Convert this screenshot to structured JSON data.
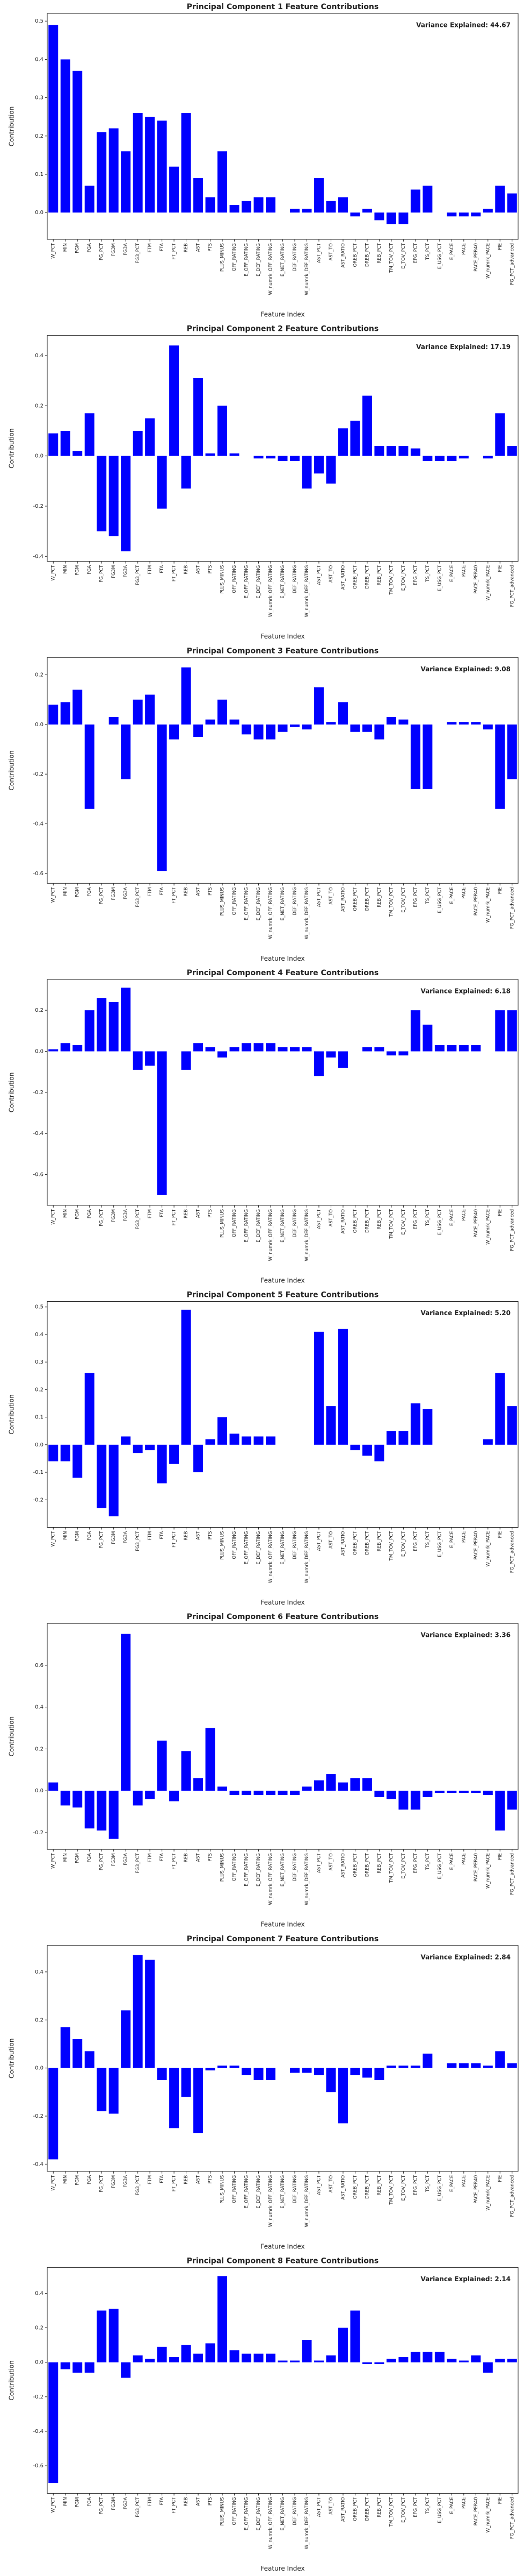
{
  "chart_data": [
    {
      "type": "bar",
      "title": "Principal Component 1 Feature Contributions",
      "annotation": "Variance Explained: 44.67",
      "xlabel": "Feature Index",
      "ylabel": "Contribution",
      "color": "#0000ff",
      "categories": [
        "W_PCT",
        "MIN",
        "FGM",
        "FGA",
        "FG_PCT",
        "FG3M",
        "FG3A",
        "FG3_PCT",
        "FTM",
        "FTA",
        "FT_PCT",
        "REB",
        "AST",
        "PTS",
        "PLUS_MINUS",
        "OFF_RATING",
        "E_OFF_RATING",
        "E_DEF_RATING",
        "W_numrk_OFF_RATING",
        "E_NET_RATING",
        "DEF_RATING",
        "W_numrk_DEF_RATING",
        "AST_PCT",
        "AST_TO",
        "AST_RATIO",
        "OREB_PCT",
        "DREB_PCT",
        "REB_PCT",
        "TM_TOV_PCT",
        "E_TOV_PCT",
        "EFG_PCT",
        "TS_PCT",
        "E_USG_PCT",
        "E_PACE",
        "PACE",
        "PACE_PER40",
        "W_numrk_PACE",
        "PIE",
        "FG_PCT_advanced"
      ],
      "values": [
        0.49,
        0.4,
        0.37,
        0.07,
        0.21,
        0.22,
        0.16,
        0.26,
        0.25,
        0.24,
        0.12,
        0.26,
        0.09,
        0.04,
        0.16,
        0.02,
        0.03,
        0.04,
        0.04,
        0.0,
        0.01,
        0.01,
        0.09,
        0.03,
        0.04,
        -0.01,
        0.01,
        -0.02,
        -0.03,
        -0.03,
        0.06,
        0.07,
        0.0,
        -0.01,
        -0.01,
        -0.01,
        0.01,
        0.07,
        0.05
      ],
      "ylim": [
        -0.07,
        0.52
      ],
      "yticks": [
        {
          "value": 0,
          "label": "0.0"
        },
        0.1,
        0.2,
        0.3,
        0.4,
        0.5
      ]
    },
    {
      "type": "bar",
      "title": "Principal Component 2 Feature Contributions",
      "annotation": "Variance Explained: 17.19",
      "xlabel": "Feature Index",
      "ylabel": "Contribution",
      "color": "#0000ff",
      "categories": [
        "W_PCT",
        "MIN",
        "FGM",
        "FGA",
        "FG_PCT",
        "FG3M",
        "FG3A",
        "FG3_PCT",
        "FTM",
        "FTA",
        "FT_PCT",
        "REB",
        "AST",
        "PTS",
        "PLUS_MINUS",
        "OFF_RATING",
        "E_OFF_RATING",
        "E_DEF_RATING",
        "W_numrk_OFF_RATING",
        "E_NET_RATING",
        "DEF_RATING",
        "W_numrk_DEF_RATING",
        "AST_PCT",
        "AST_TO",
        "AST_RATIO",
        "OREB_PCT",
        "DREB_PCT",
        "REB_PCT",
        "TM_TOV_PCT",
        "E_TOV_PCT",
        "EFG_PCT",
        "TS_PCT",
        "E_USG_PCT",
        "E_PACE",
        "PACE",
        "PACE_PER40",
        "W_numrk_PACE",
        "PIE",
        "FG_PCT_advanced"
      ],
      "values": [
        0.09,
        0.1,
        0.02,
        0.17,
        -0.3,
        -0.32,
        -0.38,
        0.1,
        0.15,
        -0.21,
        0.44,
        -0.13,
        0.31,
        0.01,
        0.2,
        0.01,
        0.0,
        -0.01,
        -0.01,
        -0.02,
        -0.02,
        -0.13,
        -0.07,
        -0.11,
        0.11,
        0.14,
        0.24,
        0.04,
        0.04,
        0.04,
        0.03,
        -0.02,
        -0.02,
        -0.02,
        -0.01,
        0.0,
        -0.01,
        0.17,
        0.04
      ],
      "ylim": [
        -0.42,
        0.48
      ],
      "yticks": [
        -0.4,
        -0.2,
        {
          "value": 0,
          "label": "0.0"
        },
        0.2,
        0.4
      ]
    },
    {
      "type": "bar",
      "title": "Principal Component 3 Feature Contributions",
      "annotation": "Variance Explained: 9.08",
      "xlabel": "Feature Index",
      "ylabel": "Contribution",
      "color": "#0000ff",
      "categories": [
        "W_PCT",
        "MIN",
        "FGM",
        "FGA",
        "FG_PCT",
        "FG3M",
        "FG3A",
        "FG3_PCT",
        "FTM",
        "FTA",
        "FT_PCT",
        "REB",
        "AST",
        "PTS",
        "PLUS_MINUS",
        "OFF_RATING",
        "E_OFF_RATING",
        "E_DEF_RATING",
        "W_numrk_OFF_RATING",
        "E_NET_RATING",
        "DEF_RATING",
        "W_numrk_DEF_RATING",
        "AST_PCT",
        "AST_TO",
        "AST_RATIO",
        "OREB_PCT",
        "DREB_PCT",
        "REB_PCT",
        "TM_TOV_PCT",
        "E_TOV_PCT",
        "EFG_PCT",
        "TS_PCT",
        "E_USG_PCT",
        "E_PACE",
        "PACE",
        "PACE_PER40",
        "W_numrk_PACE",
        "PIE",
        "FG_PCT_advanced"
      ],
      "values": [
        0.08,
        0.09,
        0.14,
        -0.34,
        0.0,
        0.03,
        -0.22,
        0.1,
        0.12,
        -0.59,
        -0.06,
        0.23,
        -0.05,
        0.02,
        0.1,
        0.02,
        -0.04,
        -0.06,
        -0.06,
        -0.03,
        -0.01,
        -0.02,
        0.15,
        0.01,
        0.09,
        -0.03,
        -0.03,
        -0.06,
        0.03,
        0.02,
        -0.26,
        -0.26,
        0.0,
        0.01,
        0.01,
        0.01,
        -0.02,
        -0.34,
        -0.22
      ],
      "ylim": [
        -0.64,
        0.27
      ],
      "yticks": [
        -0.6,
        -0.4,
        -0.2,
        {
          "value": 0,
          "label": "0.0"
        },
        0.2
      ]
    },
    {
      "type": "bar",
      "title": "Principal Component 4 Feature Contributions",
      "annotation": "Variance Explained: 6.18",
      "xlabel": "Feature Index",
      "ylabel": "Contribution",
      "color": "#0000ff",
      "categories": [
        "W_PCT",
        "MIN",
        "FGM",
        "FGA",
        "FG_PCT",
        "FG3M",
        "FG3A",
        "FG3_PCT",
        "FTM",
        "FTA",
        "FT_PCT",
        "REB",
        "AST",
        "PTS",
        "PLUS_MINUS",
        "OFF_RATING",
        "E_OFF_RATING",
        "E_DEF_RATING",
        "W_numrk_OFF_RATING",
        "E_NET_RATING",
        "DEF_RATING",
        "W_numrk_DEF_RATING",
        "AST_PCT",
        "AST_TO",
        "AST_RATIO",
        "OREB_PCT",
        "DREB_PCT",
        "REB_PCT",
        "TM_TOV_PCT",
        "E_TOV_PCT",
        "EFG_PCT",
        "TS_PCT",
        "E_USG_PCT",
        "E_PACE",
        "PACE",
        "PACE_PER40",
        "W_numrk_PACE",
        "PIE",
        "FG_PCT_advanced"
      ],
      "values": [
        0.01,
        0.04,
        0.03,
        0.2,
        0.26,
        0.24,
        0.31,
        -0.09,
        -0.07,
        -0.7,
        0.0,
        -0.09,
        0.04,
        0.02,
        -0.03,
        0.02,
        0.04,
        0.04,
        0.04,
        0.02,
        0.02,
        0.02,
        -0.12,
        -0.03,
        -0.08,
        0.0,
        0.02,
        0.02,
        -0.02,
        -0.02,
        0.2,
        0.13,
        0.03,
        0.03,
        0.03,
        0.03,
        0.0,
        0.2,
        0.2
      ],
      "ylim": [
        -0.75,
        0.35
      ],
      "yticks": [
        -0.6,
        -0.4,
        -0.2,
        {
          "value": 0,
          "label": "0.0"
        },
        0.2
      ]
    },
    {
      "type": "bar",
      "title": "Principal Component 5 Feature Contributions",
      "annotation": "Variance Explained: 5.20",
      "xlabel": "Feature Index",
      "ylabel": "Contribution",
      "color": "#0000ff",
      "categories": [
        "W_PCT",
        "MIN",
        "FGM",
        "FGA",
        "FG_PCT",
        "FG3M",
        "FG3A",
        "FG3_PCT",
        "FTM",
        "FTA",
        "FT_PCT",
        "REB",
        "AST",
        "PTS",
        "PLUS_MINUS",
        "OFF_RATING",
        "E_OFF_RATING",
        "E_DEF_RATING",
        "W_numrk_OFF_RATING",
        "E_NET_RATING",
        "DEF_RATING",
        "W_numrk_DEF_RATING",
        "AST_PCT",
        "AST_TO",
        "AST_RATIO",
        "OREB_PCT",
        "DREB_PCT",
        "REB_PCT",
        "TM_TOV_PCT",
        "E_TOV_PCT",
        "EFG_PCT",
        "TS_PCT",
        "E_USG_PCT",
        "E_PACE",
        "PACE",
        "PACE_PER40",
        "W_numrk_PACE",
        "PIE",
        "FG_PCT_advanced"
      ],
      "values": [
        -0.06,
        -0.06,
        -0.12,
        0.26,
        -0.23,
        -0.26,
        0.03,
        -0.03,
        -0.02,
        -0.14,
        -0.07,
        0.49,
        -0.1,
        0.02,
        0.1,
        0.04,
        0.03,
        0.03,
        0.03,
        0.0,
        0.0,
        0.0,
        0.41,
        0.14,
        0.42,
        -0.02,
        -0.04,
        -0.06,
        0.05,
        0.05,
        0.15,
        0.13,
        0.0,
        0.0,
        0.0,
        0.0,
        0.02,
        0.26,
        0.14
      ],
      "ylim": [
        -0.3,
        0.52
      ],
      "yticks": [
        -0.2,
        -0.1,
        {
          "value": 0,
          "label": "0.0"
        },
        0.1,
        0.2,
        0.3,
        0.4,
        0.5
      ]
    },
    {
      "type": "bar",
      "title": "Principal Component 6 Feature Contributions",
      "annotation": "Variance Explained: 3.36",
      "xlabel": "Feature Index",
      "ylabel": "Contribution",
      "color": "#0000ff",
      "categories": [
        "W_PCT",
        "MIN",
        "FGM",
        "FGA",
        "FG_PCT",
        "FG3M",
        "FG3A",
        "FG3_PCT",
        "FTM",
        "FTA",
        "FT_PCT",
        "REB",
        "AST",
        "PTS",
        "PLUS_MINUS",
        "OFF_RATING",
        "E_OFF_RATING",
        "E_DEF_RATING",
        "W_numrk_OFF_RATING",
        "E_NET_RATING",
        "DEF_RATING",
        "W_numrk_DEF_RATING",
        "AST_PCT",
        "AST_TO",
        "AST_RATIO",
        "OREB_PCT",
        "DREB_PCT",
        "REB_PCT",
        "TM_TOV_PCT",
        "E_TOV_PCT",
        "EFG_PCT",
        "TS_PCT",
        "E_USG_PCT",
        "E_PACE",
        "PACE",
        "PACE_PER40",
        "W_numrk_PACE",
        "PIE",
        "FG_PCT_advanced"
      ],
      "values": [
        0.04,
        -0.07,
        -0.08,
        -0.18,
        -0.19,
        -0.23,
        0.75,
        -0.07,
        -0.04,
        0.24,
        -0.05,
        0.19,
        0.06,
        0.3,
        0.02,
        -0.02,
        -0.02,
        -0.02,
        -0.02,
        -0.02,
        -0.02,
        0.02,
        0.05,
        0.08,
        0.04,
        0.06,
        0.06,
        -0.03,
        -0.04,
        -0.09,
        -0.09,
        -0.03,
        -0.01,
        -0.01,
        -0.01,
        -0.01,
        -0.02,
        -0.19,
        -0.09
      ],
      "ylim": [
        -0.28,
        0.8
      ],
      "yticks": [
        -0.2,
        {
          "value": 0,
          "label": "0.0"
        },
        0.2,
        0.4,
        0.6
      ]
    },
    {
      "type": "bar",
      "title": "Principal Component 7 Feature Contributions",
      "annotation": "Variance Explained: 2.84",
      "xlabel": "Feature Index",
      "ylabel": "Contribution",
      "color": "#0000ff",
      "categories": [
        "W_PCT",
        "MIN",
        "FGM",
        "FGA",
        "FG_PCT",
        "FG3M",
        "FG3A",
        "FG3_PCT",
        "FTM",
        "FTA",
        "FT_PCT",
        "REB",
        "AST",
        "PTS",
        "PLUS_MINUS",
        "OFF_RATING",
        "E_OFF_RATING",
        "E_DEF_RATING",
        "W_numrk_OFF_RATING",
        "E_NET_RATING",
        "DEF_RATING",
        "W_numrk_DEF_RATING",
        "AST_PCT",
        "AST_TO",
        "AST_RATIO",
        "OREB_PCT",
        "DREB_PCT",
        "REB_PCT",
        "TM_TOV_PCT",
        "E_TOV_PCT",
        "EFG_PCT",
        "TS_PCT",
        "E_USG_PCT",
        "E_PACE",
        "PACE",
        "PACE_PER40",
        "W_numrk_PACE",
        "PIE",
        "FG_PCT_advanced"
      ],
      "values": [
        -0.38,
        0.17,
        0.12,
        0.07,
        -0.18,
        -0.19,
        0.24,
        0.47,
        0.45,
        -0.05,
        -0.25,
        -0.12,
        -0.27,
        -0.01,
        0.01,
        0.01,
        -0.03,
        -0.05,
        -0.05,
        0.0,
        -0.02,
        -0.02,
        -0.03,
        -0.1,
        -0.23,
        -0.03,
        -0.04,
        -0.05,
        0.01,
        0.01,
        0.01,
        0.06,
        0.0,
        0.02,
        0.02,
        0.02,
        0.01,
        0.07,
        0.02
      ],
      "ylim": [
        -0.43,
        0.51
      ],
      "yticks": [
        -0.4,
        -0.2,
        {
          "value": 0,
          "label": "0.0"
        },
        0.2,
        0.4
      ]
    },
    {
      "type": "bar",
      "title": "Principal Component 8 Feature Contributions",
      "annotation": "Variance Explained: 2.14",
      "xlabel": "Feature Index",
      "ylabel": "Contribution",
      "color": "#0000ff",
      "categories": [
        "W_PCT",
        "MIN",
        "FGM",
        "FGA",
        "FG_PCT",
        "FG3M",
        "FG3A",
        "FG3_PCT",
        "FTM",
        "FTA",
        "FT_PCT",
        "REB",
        "AST",
        "PTS",
        "PLUS_MINUS",
        "OFF_RATING",
        "E_OFF_RATING",
        "E_DEF_RATING",
        "W_numrk_OFF_RATING",
        "E_NET_RATING",
        "DEF_RATING",
        "W_numrk_DEF_RATING",
        "AST_PCT",
        "AST_TO",
        "AST_RATIO",
        "OREB_PCT",
        "DREB_PCT",
        "REB_PCT",
        "TM_TOV_PCT",
        "E_TOV_PCT",
        "EFG_PCT",
        "TS_PCT",
        "E_USG_PCT",
        "E_PACE",
        "PACE",
        "PACE_PER40",
        "W_numrk_PACE",
        "PIE",
        "FG_PCT_advanced"
      ],
      "values": [
        -0.7,
        -0.04,
        -0.06,
        -0.06,
        0.3,
        0.31,
        -0.09,
        0.04,
        0.02,
        0.09,
        0.03,
        0.1,
        0.05,
        0.11,
        0.5,
        0.07,
        0.05,
        0.05,
        0.05,
        0.01,
        0.01,
        0.13,
        0.01,
        0.04,
        0.2,
        0.3,
        -0.01,
        -0.01,
        0.02,
        0.03,
        0.06,
        0.06,
        0.06,
        0.02,
        0.01,
        0.04,
        -0.06,
        0.02,
        0.02
      ],
      "ylim": [
        -0.76,
        0.55
      ],
      "yticks": [
        -0.6,
        -0.4,
        -0.2,
        {
          "value": 0,
          "label": "0.0"
        },
        0.2,
        0.4
      ]
    }
  ]
}
